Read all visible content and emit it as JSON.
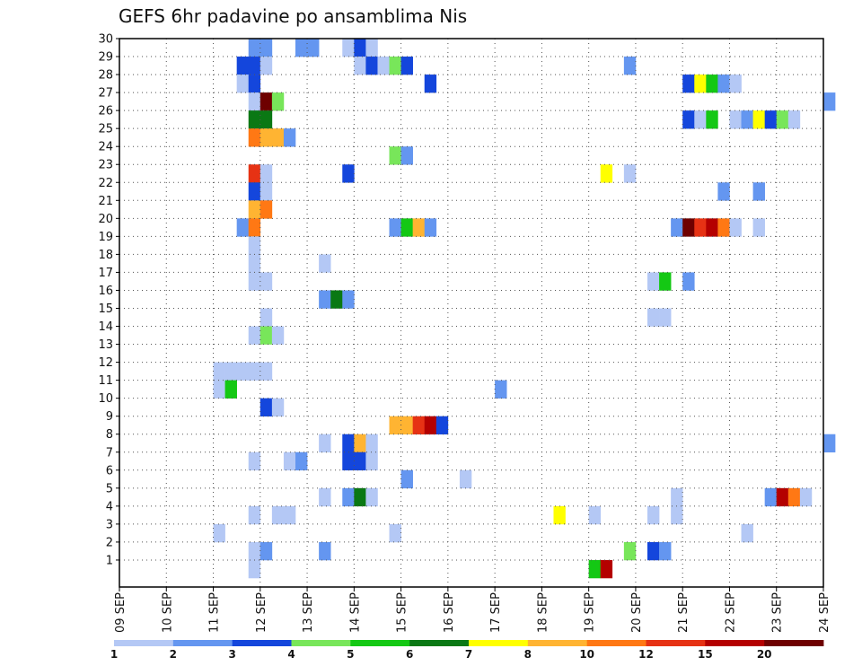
{
  "chart_data": {
    "type": "heatmap",
    "title": "GEFS 6hr padavine po ansamblima Nis",
    "xlabel": "",
    "ylabel": "",
    "x_tick_labels": [
      "09 SEP",
      "10 SEP",
      "11 SEP",
      "12 SEP",
      "13 SEP",
      "14 SEP",
      "15 SEP",
      "16 SEP",
      "17 SEP",
      "18 SEP",
      "19 SEP",
      "20 SEP",
      "21 SEP",
      "22 SEP",
      "23 SEP",
      "24 SEP"
    ],
    "y_tick_labels": [
      "1",
      "2",
      "3",
      "4",
      "5",
      "6",
      "7",
      "8",
      "9",
      "10",
      "11",
      "12",
      "13",
      "14",
      "15",
      "16",
      "17",
      "18",
      "19",
      "20",
      "21",
      "22",
      "23",
      "24",
      "25",
      "26",
      "27",
      "28",
      "29",
      "30"
    ],
    "ylim": [
      0,
      30
    ],
    "steps_per_day": 4,
    "grid": true,
    "legend": {
      "placement": "bottom",
      "colors": [
        "#b4c8f5",
        "#6496f0",
        "#1446dc",
        "#78e65a",
        "#14c814",
        "#0a7814",
        "#ffff00",
        "#ffb432",
        "#ff7814",
        "#e63214",
        "#b40000",
        "#6e0000"
      ],
      "labels": [
        "1",
        "2",
        "3",
        "4",
        "5",
        "6",
        "7",
        "8",
        "10",
        "12",
        "15",
        "20"
      ]
    },
    "cells": [
      {
        "x": "11 SEP 18z",
        "y": 30,
        "v": 2
      },
      {
        "x": "12 SEP 00z",
        "y": 30,
        "v": 2
      },
      {
        "x": "12 SEP 18z",
        "y": 30,
        "v": 2
      },
      {
        "x": "13 SEP 00z",
        "y": 30,
        "v": 2
      },
      {
        "x": "13 SEP 18z",
        "y": 30,
        "v": 1
      },
      {
        "x": "14 SEP 00z",
        "y": 30,
        "v": 3
      },
      {
        "x": "14 SEP 06z",
        "y": 30,
        "v": 1
      },
      {
        "x": "11 SEP 12z",
        "y": 29,
        "v": 3
      },
      {
        "x": "11 SEP 18z",
        "y": 29,
        "v": 3
      },
      {
        "x": "12 SEP 00z",
        "y": 29,
        "v": 1
      },
      {
        "x": "14 SEP 00z",
        "y": 29,
        "v": 1
      },
      {
        "x": "14 SEP 06z",
        "y": 29,
        "v": 3
      },
      {
        "x": "14 SEP 12z",
        "y": 29,
        "v": 1
      },
      {
        "x": "14 SEP 18z",
        "y": 29,
        "v": 4
      },
      {
        "x": "15 SEP 00z",
        "y": 29,
        "v": 3
      },
      {
        "x": "19 SEP 18z",
        "y": 29,
        "v": 2
      },
      {
        "x": "11 SEP 12z",
        "y": 28,
        "v": 1
      },
      {
        "x": "11 SEP 18z",
        "y": 28,
        "v": 3
      },
      {
        "x": "15 SEP 12z",
        "y": 28,
        "v": 3
      },
      {
        "x": "21 SEP 00z",
        "y": 28,
        "v": 3
      },
      {
        "x": "21 SEP 06z",
        "y": 28,
        "v": 7
      },
      {
        "x": "21 SEP 12z",
        "y": 28,
        "v": 5
      },
      {
        "x": "21 SEP 18z",
        "y": 28,
        "v": 2
      },
      {
        "x": "22 SEP 00z",
        "y": 28,
        "v": 1
      },
      {
        "x": "11 SEP 18z",
        "y": 27,
        "v": 1
      },
      {
        "x": "12 SEP 00z",
        "y": 27,
        "v": 20
      },
      {
        "x": "12 SEP 06z",
        "y": 27,
        "v": 4
      },
      {
        "x": "24 SEP 00z",
        "y": 27,
        "v": 2
      },
      {
        "x": "11 SEP 18z",
        "y": 26,
        "v": 6
      },
      {
        "x": "12 SEP 00z",
        "y": 26,
        "v": 6
      },
      {
        "x": "21 SEP 00z",
        "y": 26,
        "v": 3
      },
      {
        "x": "21 SEP 06z",
        "y": 26,
        "v": 1
      },
      {
        "x": "21 SEP 12z",
        "y": 26,
        "v": 5
      },
      {
        "x": "22 SEP 00z",
        "y": 26,
        "v": 1
      },
      {
        "x": "22 SEP 06z",
        "y": 26,
        "v": 2
      },
      {
        "x": "22 SEP 12z",
        "y": 26,
        "v": 7
      },
      {
        "x": "22 SEP 18z",
        "y": 26,
        "v": 3
      },
      {
        "x": "23 SEP 00z",
        "y": 26,
        "v": 4
      },
      {
        "x": "23 SEP 06z",
        "y": 26,
        "v": 1
      },
      {
        "x": "11 SEP 18z",
        "y": 25,
        "v": 10
      },
      {
        "x": "12 SEP 00z",
        "y": 25,
        "v": 8
      },
      {
        "x": "12 SEP 06z",
        "y": 25,
        "v": 8
      },
      {
        "x": "12 SEP 12z",
        "y": 25,
        "v": 2
      },
      {
        "x": "14 SEP 18z",
        "y": 24,
        "v": 4
      },
      {
        "x": "15 SEP 00z",
        "y": 24,
        "v": 2
      },
      {
        "x": "11 SEP 18z",
        "y": 23,
        "v": 12
      },
      {
        "x": "12 SEP 00z",
        "y": 23,
        "v": 1
      },
      {
        "x": "13 SEP 18z",
        "y": 23,
        "v": 3
      },
      {
        "x": "19 SEP 06z",
        "y": 23,
        "v": 7
      },
      {
        "x": "19 SEP 18z",
        "y": 23,
        "v": 1
      },
      {
        "x": "11 SEP 18z",
        "y": 22,
        "v": 3
      },
      {
        "x": "12 SEP 00z",
        "y": 22,
        "v": 1
      },
      {
        "x": "21 SEP 18z",
        "y": 22,
        "v": 2
      },
      {
        "x": "22 SEP 12z",
        "y": 22,
        "v": 2
      },
      {
        "x": "11 SEP 18z",
        "y": 21,
        "v": 8
      },
      {
        "x": "12 SEP 00z",
        "y": 21,
        "v": 10
      },
      {
        "x": "11 SEP 12z",
        "y": 20,
        "v": 2
      },
      {
        "x": "11 SEP 18z",
        "y": 20,
        "v": 10
      },
      {
        "x": "14 SEP 18z",
        "y": 20,
        "v": 2
      },
      {
        "x": "15 SEP 00z",
        "y": 20,
        "v": 5
      },
      {
        "x": "15 SEP 06z",
        "y": 20,
        "v": 8
      },
      {
        "x": "15 SEP 12z",
        "y": 20,
        "v": 2
      },
      {
        "x": "20 SEP 18z",
        "y": 20,
        "v": 2
      },
      {
        "x": "21 SEP 00z",
        "y": 20,
        "v": 20
      },
      {
        "x": "21 SEP 06z",
        "y": 20,
        "v": 12
      },
      {
        "x": "21 SEP 12z",
        "y": 20,
        "v": 15
      },
      {
        "x": "21 SEP 18z",
        "y": 20,
        "v": 10
      },
      {
        "x": "22 SEP 00z",
        "y": 20,
        "v": 1
      },
      {
        "x": "22 SEP 12z",
        "y": 20,
        "v": 1
      },
      {
        "x": "11 SEP 18z",
        "y": 19,
        "v": 1
      },
      {
        "x": "11 SEP 18z",
        "y": 18,
        "v": 1
      },
      {
        "x": "13 SEP 06z",
        "y": 18,
        "v": 1
      },
      {
        "x": "11 SEP 18z",
        "y": 17,
        "v": 1
      },
      {
        "x": "12 SEP 00z",
        "y": 17,
        "v": 1
      },
      {
        "x": "20 SEP 06z",
        "y": 17,
        "v": 1
      },
      {
        "x": "20 SEP 12z",
        "y": 17,
        "v": 5
      },
      {
        "x": "21 SEP 00z",
        "y": 17,
        "v": 2
      },
      {
        "x": "13 SEP 06z",
        "y": 16,
        "v": 2
      },
      {
        "x": "13 SEP 12z",
        "y": 16,
        "v": 6
      },
      {
        "x": "13 SEP 18z",
        "y": 16,
        "v": 2
      },
      {
        "x": "12 SEP 00z",
        "y": 15,
        "v": 1
      },
      {
        "x": "20 SEP 06z",
        "y": 15,
        "v": 1
      },
      {
        "x": "20 SEP 12z",
        "y": 15,
        "v": 1
      },
      {
        "x": "11 SEP 18z",
        "y": 14,
        "v": 1
      },
      {
        "x": "12 SEP 00z",
        "y": 14,
        "v": 4
      },
      {
        "x": "12 SEP 06z",
        "y": 14,
        "v": 1
      },
      {
        "x": "11 SEP 00z",
        "y": 12,
        "v": 1
      },
      {
        "x": "11 SEP 06z",
        "y": 12,
        "v": 1
      },
      {
        "x": "11 SEP 12z",
        "y": 12,
        "v": 1
      },
      {
        "x": "11 SEP 18z",
        "y": 12,
        "v": 1
      },
      {
        "x": "12 SEP 00z",
        "y": 12,
        "v": 1
      },
      {
        "x": "11 SEP 00z",
        "y": 11,
        "v": 1
      },
      {
        "x": "11 SEP 06z",
        "y": 11,
        "v": 5
      },
      {
        "x": "17 SEP 00z",
        "y": 11,
        "v": 2
      },
      {
        "x": "12 SEP 00z",
        "y": 10,
        "v": 3
      },
      {
        "x": "12 SEP 06z",
        "y": 10,
        "v": 1
      },
      {
        "x": "14 SEP 18z",
        "y": 9,
        "v": 8
      },
      {
        "x": "15 SEP 00z",
        "y": 9,
        "v": 8
      },
      {
        "x": "15 SEP 06z",
        "y": 9,
        "v": 12
      },
      {
        "x": "15 SEP 12z",
        "y": 9,
        "v": 15
      },
      {
        "x": "15 SEP 18z",
        "y": 9,
        "v": 3
      },
      {
        "x": "13 SEP 06z",
        "y": 8,
        "v": 1
      },
      {
        "x": "13 SEP 18z",
        "y": 8,
        "v": 3
      },
      {
        "x": "14 SEP 00z",
        "y": 8,
        "v": 8
      },
      {
        "x": "14 SEP 06z",
        "y": 8,
        "v": 1
      },
      {
        "x": "24 SEP 00z",
        "y": 8,
        "v": 2
      },
      {
        "x": "11 SEP 18z",
        "y": 7,
        "v": 1
      },
      {
        "x": "12 SEP 12z",
        "y": 7,
        "v": 1
      },
      {
        "x": "12 SEP 18z",
        "y": 7,
        "v": 2
      },
      {
        "x": "13 SEP 18z",
        "y": 7,
        "v": 3
      },
      {
        "x": "14 SEP 00z",
        "y": 7,
        "v": 3
      },
      {
        "x": "14 SEP 06z",
        "y": 7,
        "v": 1
      },
      {
        "x": "15 SEP 00z",
        "y": 6,
        "v": 2
      },
      {
        "x": "16 SEP 06z",
        "y": 6,
        "v": 1
      },
      {
        "x": "13 SEP 06z",
        "y": 5,
        "v": 1
      },
      {
        "x": "13 SEP 18z",
        "y": 5,
        "v": 2
      },
      {
        "x": "14 SEP 00z",
        "y": 5,
        "v": 6
      },
      {
        "x": "14 SEP 06z",
        "y": 5,
        "v": 1
      },
      {
        "x": "20 SEP 18z",
        "y": 5,
        "v": 1
      },
      {
        "x": "22 SEP 18z",
        "y": 5,
        "v": 2
      },
      {
        "x": "23 SEP 00z",
        "y": 5,
        "v": 15
      },
      {
        "x": "23 SEP 06z",
        "y": 5,
        "v": 10
      },
      {
        "x": "23 SEP 12z",
        "y": 5,
        "v": 1
      },
      {
        "x": "11 SEP 18z",
        "y": 4,
        "v": 1
      },
      {
        "x": "12 SEP 06z",
        "y": 4,
        "v": 1
      },
      {
        "x": "12 SEP 12z",
        "y": 4,
        "v": 1
      },
      {
        "x": "18 SEP 06z",
        "y": 4,
        "v": 7
      },
      {
        "x": "19 SEP 00z",
        "y": 4,
        "v": 1
      },
      {
        "x": "20 SEP 06z",
        "y": 4,
        "v": 1
      },
      {
        "x": "20 SEP 18z",
        "y": 4,
        "v": 1
      },
      {
        "x": "11 SEP 00z",
        "y": 3,
        "v": 1
      },
      {
        "x": "14 SEP 18z",
        "y": 3,
        "v": 1
      },
      {
        "x": "22 SEP 06z",
        "y": 3,
        "v": 1
      },
      {
        "x": "11 SEP 18z",
        "y": 2,
        "v": 1
      },
      {
        "x": "12 SEP 00z",
        "y": 2,
        "v": 2
      },
      {
        "x": "13 SEP 06z",
        "y": 2,
        "v": 2
      },
      {
        "x": "19 SEP 18z",
        "y": 2,
        "v": 4
      },
      {
        "x": "20 SEP 06z",
        "y": 2,
        "v": 3
      },
      {
        "x": "20 SEP 12z",
        "y": 2,
        "v": 2
      },
      {
        "x": "11 SEP 18z",
        "y": 1,
        "v": 1
      },
      {
        "x": "19 SEP 00z",
        "y": 1,
        "v": 5
      },
      {
        "x": "19 SEP 06z",
        "y": 1,
        "v": 15
      }
    ]
  }
}
